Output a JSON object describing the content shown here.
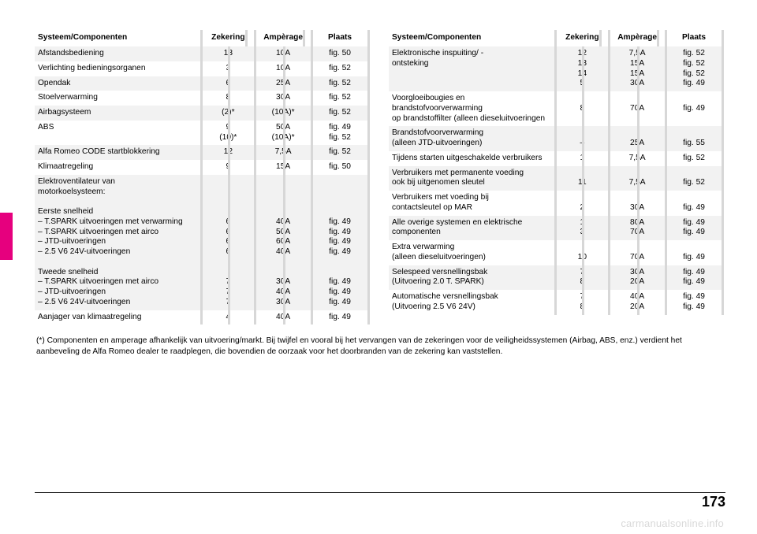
{
  "colors": {
    "page_bg": "#ffffff",
    "band_a": "#f2f2f2",
    "band_b": "#ffffff",
    "col_sep": "#d7d7d7",
    "side_tab": "#e6007e",
    "text": "#000000",
    "watermark": "#d9d9d9"
  },
  "typography": {
    "body_fontsize_pt": 8,
    "header_fontsize_pt": 8,
    "page_num_fontsize_pt": 14,
    "font_family": "Helvetica Neue / Arial"
  },
  "header": {
    "c1": "Systeem/Componenten",
    "c2": "Zekering",
    "c3": "Ampèrage",
    "c4": "Plaats"
  },
  "left": [
    {
      "band": "a",
      "label": [
        "Afstandsbediening"
      ],
      "c2": [
        "13"
      ],
      "c3": [
        "10A"
      ],
      "c4": [
        "fig. 50"
      ]
    },
    {
      "band": "b",
      "label": [
        "Verlichting bedieningsorganen"
      ],
      "c2": [
        "3"
      ],
      "c3": [
        "10A"
      ],
      "c4": [
        "fig. 52"
      ]
    },
    {
      "band": "a",
      "label": [
        "Opendak"
      ],
      "c2": [
        "6"
      ],
      "c3": [
        "25A"
      ],
      "c4": [
        "fig. 52"
      ]
    },
    {
      "band": "b",
      "label": [
        "Stoelverwarming"
      ],
      "c2": [
        "8"
      ],
      "c3": [
        "30A"
      ],
      "c4": [
        "fig. 52"
      ]
    },
    {
      "band": "a",
      "label": [
        "Airbagsysteem"
      ],
      "c2": [
        "(2)*"
      ],
      "c3": [
        "(10A)*"
      ],
      "c4": [
        "fig. 52"
      ]
    },
    {
      "band": "b",
      "label": [
        "ABS"
      ],
      "c2": [
        "9",
        "(10)*"
      ],
      "c3": [
        "50A",
        "(10A)*"
      ],
      "c4": [
        "fig. 49",
        "fig. 52"
      ]
    },
    {
      "band": "a",
      "label": [
        "Alfa Romeo CODE startblokkering"
      ],
      "c2": [
        "12"
      ],
      "c3": [
        "7,5A"
      ],
      "c4": [
        "fig. 52"
      ]
    },
    {
      "band": "b",
      "label": [
        "Klimaatregeling"
      ],
      "c2": [
        "9"
      ],
      "c3": [
        "15A"
      ],
      "c4": [
        "fig. 50"
      ]
    },
    {
      "band": "a",
      "label": [
        "Elektroventilateur van",
        "motorkoelsysteem:",
        "",
        "Eerste snelheid",
        "– T.SPARK uitvoeringen met verwarming",
        "– T.SPARK uitvoeringen met airco",
        "– JTD-uitvoeringen",
        "– 2.5 V6 24V-uitvoeringen",
        "",
        "Tweede snelheid",
        "– T.SPARK uitvoeringen met airco",
        "– JTD-uitvoeringen",
        "– 2.5 V6 24V-uitvoeringen"
      ],
      "c2": [
        "",
        "",
        "",
        "",
        "6",
        "6",
        "6",
        "6",
        "",
        "",
        "7",
        "7",
        "7"
      ],
      "c3": [
        "",
        "",
        "",
        "",
        "40A",
        "50A",
        "60A",
        "40A",
        "",
        "",
        "30A",
        "40A",
        "30A"
      ],
      "c4": [
        "",
        "",
        "",
        "",
        "fig. 49",
        "fig. 49",
        "fig. 49",
        "fig. 49",
        "",
        "",
        "fig. 49",
        "fig. 49",
        "fig. 49"
      ]
    },
    {
      "band": "b",
      "label": [
        "Aanjager van klimaatregeling"
      ],
      "c2": [
        "4"
      ],
      "c3": [
        "40A"
      ],
      "c4": [
        "fig. 49"
      ]
    }
  ],
  "right": [
    {
      "band": "a",
      "label": [
        "Elektronische inspuiting/ -",
        "ontsteking"
      ],
      "c2": [
        "12",
        "13",
        "14",
        "5"
      ],
      "c3": [
        "7,5A",
        "15A",
        "15A",
        "30A"
      ],
      "c4": [
        "fig. 52",
        "fig. 52",
        "fig. 52",
        "fig. 49"
      ]
    },
    {
      "band": "b",
      "label": [
        "Voorgloeibougies en brandstofvoorverwarming",
        "op brandstoffilter (alleen dieseluitvoeringen"
      ],
      "c2": [
        "",
        "8"
      ],
      "c3": [
        "",
        "70A"
      ],
      "c4": [
        "",
        "fig. 49"
      ]
    },
    {
      "band": "a",
      "label": [
        "Brandstofvoorverwarming",
        "(alleen JTD-uitvoeringen)"
      ],
      "c2": [
        "",
        "–"
      ],
      "c3": [
        "",
        "25A"
      ],
      "c4": [
        "",
        "fig. 55"
      ]
    },
    {
      "band": "b",
      "label": [
        "Tijdens starten uitgeschakelde verbruikers"
      ],
      "c2": [
        "1"
      ],
      "c3": [
        "7,5A"
      ],
      "c4": [
        "fig. 52"
      ]
    },
    {
      "band": "a",
      "label": [
        "Verbruikers met permanente voeding",
        "ook bij uitgenomen sleutel"
      ],
      "c2": [
        "",
        "11"
      ],
      "c3": [
        "",
        "7,5A"
      ],
      "c4": [
        "",
        "fig. 52"
      ]
    },
    {
      "band": "b",
      "label": [
        "Verbruikers met voeding bij",
        "contactsleutel op MAR"
      ],
      "c2": [
        "",
        "2"
      ],
      "c3": [
        "",
        "30A"
      ],
      "c4": [
        "",
        "fig. 49"
      ]
    },
    {
      "band": "a",
      "label": [
        "Alle overige systemen en elektrische",
        "componenten"
      ],
      "c2": [
        "1",
        "3"
      ],
      "c3": [
        "80A",
        "70A"
      ],
      "c4": [
        "fig. 49",
        "fig. 49"
      ]
    },
    {
      "band": "b",
      "label": [
        "Extra verwarming",
        "(alleen dieseluitvoeringen)"
      ],
      "c2": [
        "",
        "10"
      ],
      "c3": [
        "",
        "70A"
      ],
      "c4": [
        "",
        "fig. 49"
      ]
    },
    {
      "band": "a",
      "label": [
        "Selespeed versnellingsbak",
        "(Uitvoering 2.0 T. SPARK)"
      ],
      "c2": [
        "7",
        "8"
      ],
      "c3": [
        "30A",
        "20A"
      ],
      "c4": [
        "fig. 49",
        "fig. 49"
      ]
    },
    {
      "band": "b",
      "label": [
        "Automatische versnellingsbak",
        "(Uitvoering 2.5 V6 24V)"
      ],
      "c2": [
        "7",
        "8"
      ],
      "c3": [
        "40A",
        "20A"
      ],
      "c4": [
        "fig. 49",
        "fig. 49"
      ]
    }
  ],
  "footnote": "(*)  Componenten en amperage afhankelijk van uitvoering/markt. Bij twijfel en vooral bij het vervangen van de zekeringen voor de veiligheidssystemen (Airbag, ABS, enz.) verdient het aanbeveling de Alfa Romeo dealer te raadplegen, die bovendien de oorzaak voor het doorbranden van de zekering kan vaststellen.",
  "page_number": "173",
  "watermark": "carmanualsonline.info"
}
